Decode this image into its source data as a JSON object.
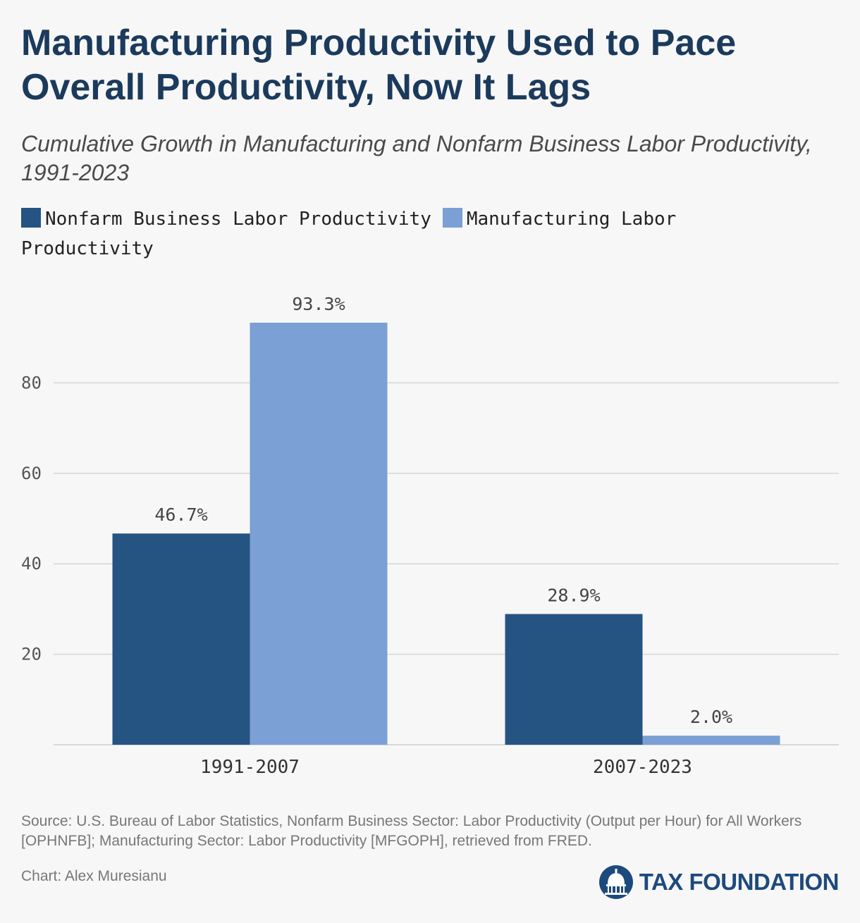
{
  "header": {
    "title": "Manufacturing Productivity Used to Pace Overall Productivity, Now It Lags",
    "subtitle": "Cumulative Growth in Manufacturing and Nonfarm Business Labor Productivity, 1991-2023"
  },
  "chart_data": {
    "type": "bar",
    "title": "Manufacturing Productivity Used to Pace Overall Productivity, Now It Lags",
    "subtitle": "Cumulative Growth in Manufacturing and Nonfarm Business Labor Productivity, 1991-2023",
    "categories": [
      "1991-2007",
      "2007-2023"
    ],
    "series": [
      {
        "name": "Nonfarm Business Labor Productivity",
        "values": [
          46.7,
          28.9
        ],
        "labels": [
          "46.7%",
          "28.9%"
        ],
        "color": "#255483"
      },
      {
        "name": "Manufacturing Labor Productivity",
        "values": [
          93.3,
          2.0
        ],
        "labels": [
          "93.3%",
          "2.0%"
        ],
        "color": "#7aa0d5"
      }
    ],
    "yticks": [
      20,
      40,
      60,
      80
    ],
    "ylim": [
      0,
      100
    ],
    "grid": true,
    "legend": "top-left"
  },
  "footer": {
    "source": "Source: U.S. Bureau of Labor Statistics, Nonfarm Business Sector: Labor Productivity (Output per Hour) for All Workers [OPHNFB]; Manufacturing Sector: Labor Productivity [MFGOPH], retrieved from FRED.",
    "credit": "Chart: Alex Muresianu",
    "logo_text": "TAX FOUNDATION"
  },
  "colors": {
    "title": "#1b3a5c",
    "accent_dark": "#255483",
    "accent_light": "#7aa0d5",
    "background": "#f7f7f7"
  },
  "icons": [
    "capitol-dome-icon"
  ]
}
